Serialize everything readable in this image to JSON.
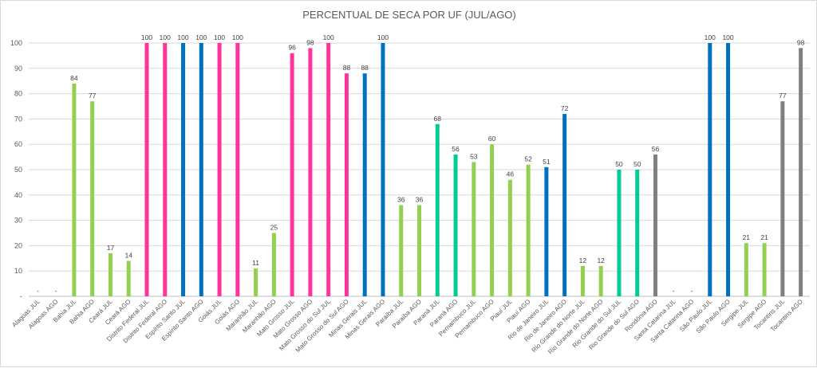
{
  "chart_data": {
    "type": "bar",
    "title": "PERCENTUAL DE SECA POR UF (JUL/AGO)",
    "ylim": [
      0,
      100
    ],
    "yticks": [
      "-",
      "10",
      "20",
      "30",
      "40",
      "50",
      "60",
      "70",
      "80",
      "90",
      "100"
    ],
    "grid": true,
    "legend": "none",
    "colors": {
      "lime": "#92d050",
      "pink": "#ff3399",
      "blue": "#0070c0",
      "teal": "#00cc99",
      "gray": "#7f7f7f"
    },
    "bars": [
      {
        "category": "Alagoas JUL",
        "value": 0,
        "label": "-",
        "color": "lime"
      },
      {
        "category": "Alagoas AGO",
        "value": 0,
        "label": "-",
        "color": "lime"
      },
      {
        "category": "Bahia JUL",
        "value": 84,
        "label": "84",
        "color": "lime"
      },
      {
        "category": "Bahia AGO",
        "value": 77,
        "label": "77",
        "color": "lime"
      },
      {
        "category": "Ceará JUL",
        "value": 17,
        "label": "17",
        "color": "lime"
      },
      {
        "category": "Ceará AGO",
        "value": 14,
        "label": "14",
        "color": "lime"
      },
      {
        "category": "Distrito Federal JUL",
        "value": 100,
        "label": "100",
        "color": "pink"
      },
      {
        "category": "Distrito Federal AGO",
        "value": 100,
        "label": "100",
        "color": "pink"
      },
      {
        "category": "Espírito Santo JUL",
        "value": 100,
        "label": "100",
        "color": "blue"
      },
      {
        "category": "Espírito Santo AGO",
        "value": 100,
        "label": "100",
        "color": "blue"
      },
      {
        "category": "Goiás JUL",
        "value": 100,
        "label": "100",
        "color": "pink"
      },
      {
        "category": "Goiás AGO",
        "value": 100,
        "label": "100",
        "color": "pink"
      },
      {
        "category": "Maranhão JUL",
        "value": 11,
        "label": "11",
        "color": "lime"
      },
      {
        "category": "Maranhão AGO",
        "value": 25,
        "label": "25",
        "color": "lime"
      },
      {
        "category": "Mato Grosso JUL",
        "value": 96,
        "label": "96",
        "color": "pink"
      },
      {
        "category": "Mato Grosso AGO",
        "value": 98,
        "label": "98",
        "color": "pink"
      },
      {
        "category": "Mato Grosso do Sul JUL",
        "value": 100,
        "label": "100",
        "color": "pink"
      },
      {
        "category": "Mato Grosso do Sul AGO",
        "value": 88,
        "label": "88",
        "color": "pink"
      },
      {
        "category": "Minas Gerais JUL",
        "value": 88,
        "label": "88",
        "color": "blue"
      },
      {
        "category": "Minas Gerais AGO",
        "value": 100,
        "label": "100",
        "color": "blue"
      },
      {
        "category": "Paraíba JUL",
        "value": 36,
        "label": "36",
        "color": "lime"
      },
      {
        "category": "Paraíba AGO",
        "value": 36,
        "label": "36",
        "color": "lime"
      },
      {
        "category": "Paraná JUL",
        "value": 68,
        "label": "68",
        "color": "teal"
      },
      {
        "category": "Paraná AGO",
        "value": 56,
        "label": "56",
        "color": "teal"
      },
      {
        "category": "Pernambuco JUL",
        "value": 53,
        "label": "53",
        "color": "lime"
      },
      {
        "category": "Pernambuco AGO",
        "value": 60,
        "label": "60",
        "color": "lime"
      },
      {
        "category": "Piauí JUL",
        "value": 46,
        "label": "46",
        "color": "lime"
      },
      {
        "category": "Piauí AGO",
        "value": 52,
        "label": "52",
        "color": "lime"
      },
      {
        "category": "Rio de Janeiro JUL",
        "value": 51,
        "label": "51",
        "color": "blue"
      },
      {
        "category": "Rio de Janeiro AGO",
        "value": 72,
        "label": "72",
        "color": "blue"
      },
      {
        "category": "Rio Grande do Norte JUL",
        "value": 12,
        "label": "12",
        "color": "lime"
      },
      {
        "category": "Rio Grande do Norte AGO",
        "value": 12,
        "label": "12",
        "color": "lime"
      },
      {
        "category": "Rio Grande do Sul JUL",
        "value": 50,
        "label": "50",
        "color": "teal"
      },
      {
        "category": "Rio Grande do Sul AGO",
        "value": 50,
        "label": "50",
        "color": "teal"
      },
      {
        "category": "Rondônia AGO",
        "value": 56,
        "label": "56",
        "color": "gray"
      },
      {
        "category": "Santa Catarina JUL",
        "value": 0,
        "label": "-",
        "color": "teal"
      },
      {
        "category": "Santa Catarina AGO",
        "value": 0,
        "label": "-",
        "color": "teal"
      },
      {
        "category": "São Paulo JUL",
        "value": 100,
        "label": "100",
        "color": "blue"
      },
      {
        "category": "São Paulo AGO",
        "value": 100,
        "label": "100",
        "color": "blue"
      },
      {
        "category": "Sergipe JUL",
        "value": 21,
        "label": "21",
        "color": "lime"
      },
      {
        "category": "Sergipe AGO",
        "value": 21,
        "label": "21",
        "color": "lime"
      },
      {
        "category": "Tocantins JUL",
        "value": 77,
        "label": "77",
        "color": "gray"
      },
      {
        "category": "Tocantins AGO",
        "value": 98,
        "label": "98",
        "color": "gray"
      }
    ]
  }
}
